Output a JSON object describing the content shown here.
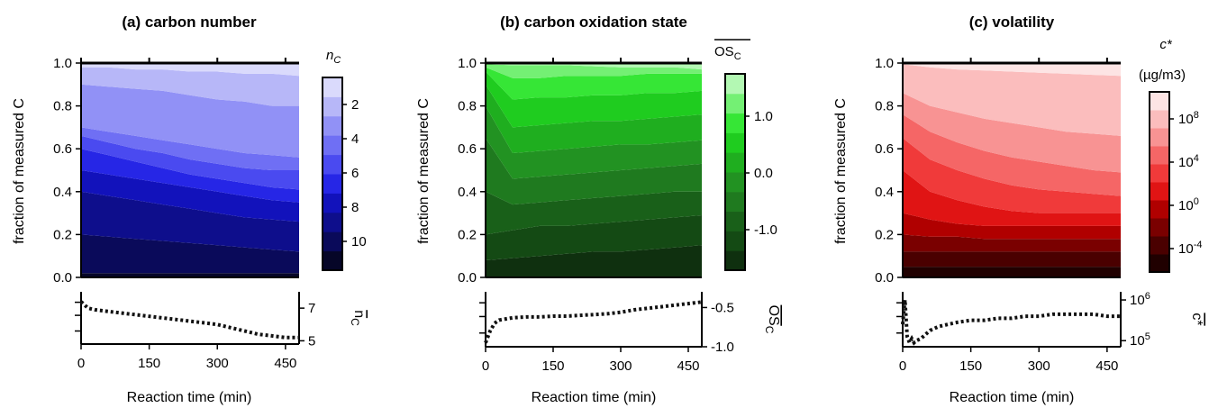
{
  "chart_data": [
    {
      "type": "area",
      "title": "(a) carbon number",
      "xlabel": "Reaction time (min)",
      "ylabel": "fraction of measured C",
      "xlim": [
        0,
        480
      ],
      "ylim": [
        0,
        1.0
      ],
      "xticks": [
        "0",
        "150",
        "300",
        "450"
      ],
      "yticks": [
        "0.0",
        "0.2",
        "0.4",
        "0.6",
        "0.8",
        "1.0"
      ],
      "x": [
        0,
        60,
        120,
        180,
        240,
        300,
        360,
        420,
        480
      ],
      "boundaries": [
        [
          0.02,
          0.02,
          0.02,
          0.02,
          0.02,
          0.02,
          0.02,
          0.02,
          0.02
        ],
        [
          0.2,
          0.19,
          0.18,
          0.17,
          0.16,
          0.15,
          0.14,
          0.13,
          0.12
        ],
        [
          0.4,
          0.38,
          0.36,
          0.34,
          0.32,
          0.3,
          0.28,
          0.27,
          0.26
        ],
        [
          0.5,
          0.48,
          0.46,
          0.44,
          0.42,
          0.4,
          0.38,
          0.36,
          0.35
        ],
        [
          0.6,
          0.57,
          0.54,
          0.51,
          0.48,
          0.46,
          0.44,
          0.42,
          0.41
        ],
        [
          0.66,
          0.63,
          0.6,
          0.58,
          0.55,
          0.53,
          0.51,
          0.5,
          0.5
        ],
        [
          0.7,
          0.68,
          0.66,
          0.64,
          0.62,
          0.6,
          0.58,
          0.57,
          0.56
        ],
        [
          0.9,
          0.89,
          0.88,
          0.87,
          0.85,
          0.83,
          0.82,
          0.8,
          0.8
        ],
        [
          0.98,
          0.98,
          0.97,
          0.97,
          0.96,
          0.96,
          0.95,
          0.95,
          0.94
        ]
      ],
      "colorbar": {
        "label": "n",
        "label_sub": "C",
        "ticks": [
          "2",
          "4",
          "6",
          "8",
          "10"
        ],
        "colors": [
          "#060628",
          "#0a0a5a",
          "#0e0e8c",
          "#1212bb",
          "#2626e6",
          "#4a4af0",
          "#6f6ff4",
          "#9191f6",
          "#b7b7f8",
          "#dadafc"
        ]
      },
      "mean_panel": {
        "ylabel": "n",
        "ylabel_sub": "C",
        "overbar": true,
        "yticks": [
          "5",
          "7"
        ],
        "ylim": [
          4.8,
          8.0
        ],
        "x": [
          0,
          15,
          30,
          60,
          90,
          120,
          150,
          180,
          210,
          240,
          270,
          300,
          330,
          360,
          390,
          420,
          450,
          480
        ],
        "y": [
          7.4,
          7.0,
          6.9,
          6.8,
          6.7,
          6.6,
          6.5,
          6.4,
          6.3,
          6.2,
          6.1,
          6.0,
          5.8,
          5.6,
          5.4,
          5.3,
          5.2,
          5.2
        ]
      }
    },
    {
      "type": "area",
      "title": "(b) carbon oxidation state",
      "xlabel": "Reaction time (min)",
      "ylabel": "fraction of measured C",
      "xlim": [
        0,
        480
      ],
      "ylim": [
        0,
        1.0
      ],
      "xticks": [
        "0",
        "150",
        "300",
        "450"
      ],
      "yticks": [
        "0.0",
        "0.2",
        "0.4",
        "0.6",
        "0.8",
        "1.0"
      ],
      "x": [
        0,
        60,
        120,
        180,
        240,
        300,
        360,
        420,
        480
      ],
      "boundaries": [
        [
          0.08,
          0.09,
          0.1,
          0.11,
          0.12,
          0.12,
          0.13,
          0.14,
          0.15
        ],
        [
          0.2,
          0.22,
          0.24,
          0.24,
          0.25,
          0.26,
          0.27,
          0.28,
          0.29
        ],
        [
          0.4,
          0.34,
          0.35,
          0.36,
          0.37,
          0.38,
          0.39,
          0.4,
          0.4
        ],
        [
          0.65,
          0.46,
          0.47,
          0.48,
          0.49,
          0.5,
          0.51,
          0.52,
          0.53
        ],
        [
          0.8,
          0.58,
          0.59,
          0.6,
          0.61,
          0.62,
          0.62,
          0.63,
          0.64
        ],
        [
          0.9,
          0.7,
          0.71,
          0.72,
          0.73,
          0.73,
          0.74,
          0.75,
          0.76
        ],
        [
          0.96,
          0.83,
          0.84,
          0.84,
          0.85,
          0.85,
          0.86,
          0.86,
          0.87
        ],
        [
          0.98,
          0.93,
          0.93,
          0.94,
          0.94,
          0.94,
          0.95,
          0.95,
          0.95
        ],
        [
          0.995,
          0.99,
          0.99,
          0.99,
          0.985,
          0.98,
          0.98,
          0.98,
          0.97
        ]
      ],
      "colorbar": {
        "label": "OS",
        "label_sub": "C",
        "overbar": true,
        "ticks": [
          "1.0",
          "0.0",
          "-1.0"
        ],
        "colors": [
          "#0f300f",
          "#144a14",
          "#196019",
          "#1f7a1f",
          "#229222",
          "#1fae1f",
          "#1fcc1f",
          "#36e636",
          "#74f074",
          "#b3f8b3"
        ]
      },
      "mean_panel": {
        "ylabel": "OS",
        "ylabel_sub": "C",
        "overbar": true,
        "yticks": [
          "-0.5",
          "-1.0"
        ],
        "ylim": [
          -1.0,
          -0.3
        ],
        "x": [
          0,
          10,
          20,
          30,
          60,
          90,
          120,
          150,
          180,
          210,
          240,
          270,
          300,
          330,
          360,
          390,
          420,
          450,
          480
        ],
        "y": [
          -0.95,
          -0.8,
          -0.7,
          -0.66,
          -0.63,
          -0.62,
          -0.62,
          -0.61,
          -0.61,
          -0.6,
          -0.59,
          -0.58,
          -0.56,
          -0.53,
          -0.51,
          -0.49,
          -0.47,
          -0.45,
          -0.43
        ]
      }
    },
    {
      "type": "area",
      "title": "(c) volatility",
      "xlabel": "Reaction time (min)",
      "ylabel": "fraction of measured C",
      "xlim": [
        0,
        480
      ],
      "ylim": [
        0,
        1.0
      ],
      "xticks": [
        "0",
        "150",
        "300",
        "450"
      ],
      "yticks": [
        "0.0",
        "0.2",
        "0.4",
        "0.6",
        "0.8",
        "1.0"
      ],
      "x": [
        0,
        60,
        120,
        180,
        240,
        300,
        360,
        420,
        480
      ],
      "boundaries": [
        [
          0.05,
          0.05,
          0.05,
          0.05,
          0.05,
          0.05,
          0.05,
          0.05,
          0.05
        ],
        [
          0.12,
          0.12,
          0.12,
          0.12,
          0.12,
          0.12,
          0.12,
          0.12,
          0.12
        ],
        [
          0.2,
          0.19,
          0.19,
          0.18,
          0.18,
          0.18,
          0.18,
          0.18,
          0.18
        ],
        [
          0.3,
          0.27,
          0.25,
          0.24,
          0.24,
          0.24,
          0.24,
          0.24,
          0.24
        ],
        [
          0.5,
          0.4,
          0.36,
          0.33,
          0.31,
          0.3,
          0.3,
          0.3,
          0.3
        ],
        [
          0.65,
          0.55,
          0.5,
          0.46,
          0.43,
          0.41,
          0.4,
          0.39,
          0.38
        ],
        [
          0.76,
          0.68,
          0.63,
          0.59,
          0.56,
          0.54,
          0.52,
          0.5,
          0.49
        ],
        [
          0.86,
          0.8,
          0.77,
          0.74,
          0.72,
          0.7,
          0.68,
          0.67,
          0.66
        ],
        [
          0.995,
          0.98,
          0.97,
          0.965,
          0.96,
          0.955,
          0.95,
          0.945,
          0.94
        ]
      ],
      "colorbar": {
        "label": "c*",
        "label_unit": "(µg/m3)",
        "ticks": [
          "10^8",
          "10^4",
          "10^0",
          "10^-4"
        ],
        "colors": [
          "#200000",
          "#4a0000",
          "#7a0000",
          "#b00000",
          "#e01414",
          "#f03a3a",
          "#f56666",
          "#f89393",
          "#fbbdbd",
          "#fde4e4"
        ]
      },
      "mean_panel": {
        "ylabel": "c*",
        "overbar": true,
        "yticks": [
          "10^6",
          "10^5"
        ],
        "ylim": [
          4.85,
          6.2
        ],
        "x": [
          0,
          5,
          10,
          15,
          20,
          25,
          30,
          40,
          50,
          60,
          80,
          100,
          120,
          150,
          180,
          210,
          240,
          270,
          300,
          330,
          360,
          390,
          420,
          450,
          480
        ],
        "y": [
          5.4,
          6.0,
          5.1,
          4.95,
          5.05,
          4.95,
          5.0,
          5.05,
          5.15,
          5.25,
          5.35,
          5.4,
          5.45,
          5.5,
          5.5,
          5.55,
          5.55,
          5.6,
          5.6,
          5.65,
          5.65,
          5.65,
          5.65,
          5.6,
          5.6
        ]
      }
    }
  ]
}
